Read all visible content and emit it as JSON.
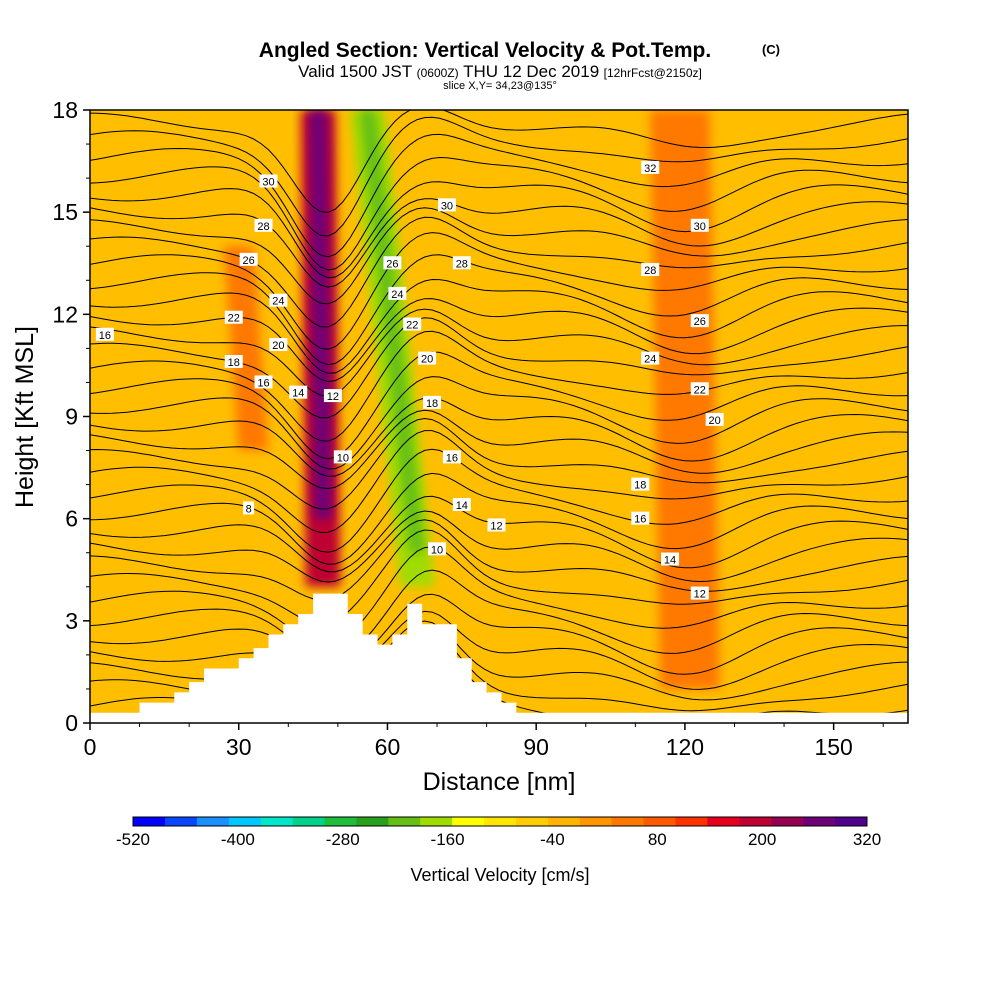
{
  "chart_data": {
    "type": "heatmap",
    "title": "Angled Section: Vertical Velocity & Pot.Temp.",
    "title_mark": "(C)",
    "subtitle_parts": [
      "Valid 1500 JST",
      "(0600Z)",
      "THU 12 Dec 2019",
      "[12hrFcst@2150z]"
    ],
    "slice_label": "slice X,Y= 34,23@135°",
    "xlabel": "Distance [nm]",
    "ylabel": "Height [Kft MSL]",
    "xlim": [
      0,
      165
    ],
    "ylim": [
      0,
      18
    ],
    "xticks": [
      0,
      30,
      60,
      90,
      120,
      150
    ],
    "yticks": [
      0,
      3,
      6,
      9,
      12,
      15,
      18
    ],
    "colorbar": {
      "label": "Vertical Velocity [cm/s]",
      "tick_labels": [
        "-520",
        "-400",
        "-280",
        "-160",
        "-40",
        "80",
        "200",
        "320"
      ],
      "min": -520,
      "max": 320,
      "colors": [
        "#0000ff",
        "#0a45ff",
        "#1890ff",
        "#00c8ff",
        "#00e6c8",
        "#00d28c",
        "#1ebe3c",
        "#28a01e",
        "#64be14",
        "#a0dc00",
        "#ffff00",
        "#ffe600",
        "#ffcd00",
        "#ffb400",
        "#ff9600",
        "#ff7800",
        "#ff5a00",
        "#ff3200",
        "#e6001e",
        "#be0032",
        "#960050",
        "#6e0078",
        "#50008c"
      ]
    },
    "terrain_profile": {
      "x": [
        0,
        10,
        10,
        17,
        17,
        20,
        20,
        23,
        23,
        30,
        30,
        33,
        33,
        36,
        36,
        39,
        39,
        42,
        42,
        45,
        45,
        52,
        52,
        55,
        55,
        58,
        58,
        61,
        61,
        64,
        64,
        67,
        67,
        74,
        74,
        77,
        77,
        80,
        80,
        83,
        83,
        86,
        86,
        89,
        89,
        165
      ],
      "y": [
        0.3,
        0.3,
        0.6,
        0.6,
        0.9,
        0.9,
        1.2,
        1.2,
        1.6,
        1.6,
        1.9,
        1.9,
        2.2,
        2.2,
        2.6,
        2.6,
        2.9,
        2.9,
        3.2,
        3.2,
        3.8,
        3.8,
        3.2,
        3.2,
        2.6,
        2.6,
        2.3,
        2.3,
        2.6,
        2.6,
        3.5,
        3.5,
        2.9,
        2.9,
        1.9,
        1.9,
        1.2,
        1.2,
        0.9,
        0.9,
        0.6,
        0.6,
        0.3,
        0.3,
        0.3,
        0.3
      ]
    },
    "velocity_bands": [
      {
        "x_bottom": 47,
        "x_top": 46,
        "width": 7,
        "y0": 4,
        "y1": 18,
        "value": 200
      },
      {
        "x_bottom": 47,
        "x_top": 46,
        "width": 3.5,
        "y0": 6,
        "y1": 18,
        "value": 280
      },
      {
        "x_bottom": 66,
        "x_top": 56,
        "width": 7,
        "y0": 4,
        "y1": 18,
        "value": -160
      },
      {
        "x_bottom": 66,
        "x_top": 56,
        "width": 3,
        "y0": 5,
        "y1": 18,
        "value": -220
      },
      {
        "x_bottom": 121,
        "x_top": 119,
        "width": 12,
        "y0": 1,
        "y1": 18,
        "value": 60
      },
      {
        "x_bottom": 33,
        "x_top": 30,
        "width": 6,
        "y0": 8,
        "y1": 14,
        "value": 40
      }
    ],
    "contour_labels": [
      {
        "value": "30",
        "x": 36,
        "y": 15.9
      },
      {
        "value": "28",
        "x": 35,
        "y": 14.6
      },
      {
        "value": "26",
        "x": 32,
        "y": 13.6
      },
      {
        "value": "24",
        "x": 38,
        "y": 12.4
      },
      {
        "value": "22",
        "x": 29,
        "y": 11.9
      },
      {
        "value": "20",
        "x": 38,
        "y": 11.1
      },
      {
        "value": "18",
        "x": 29,
        "y": 10.6
      },
      {
        "value": "16",
        "x": 35,
        "y": 10.0
      },
      {
        "value": "14",
        "x": 42,
        "y": 9.7
      },
      {
        "value": "12",
        "x": 49,
        "y": 9.6
      },
      {
        "value": "10",
        "x": 51,
        "y": 7.8
      },
      {
        "value": "8",
        "x": 32,
        "y": 6.3
      },
      {
        "value": "16",
        "x": 3,
        "y": 11.4
      },
      {
        "value": "30",
        "x": 72,
        "y": 15.2
      },
      {
        "value": "28",
        "x": 75,
        "y": 13.5
      },
      {
        "value": "26",
        "x": 61,
        "y": 13.5
      },
      {
        "value": "24",
        "x": 62,
        "y": 12.6
      },
      {
        "value": "22",
        "x": 65,
        "y": 11.7
      },
      {
        "value": "20",
        "x": 68,
        "y": 10.7
      },
      {
        "value": "18",
        "x": 69,
        "y": 9.4
      },
      {
        "value": "16",
        "x": 73,
        "y": 7.8
      },
      {
        "value": "14",
        "x": 75,
        "y": 6.4
      },
      {
        "value": "12",
        "x": 82,
        "y": 5.8
      },
      {
        "value": "10",
        "x": 70,
        "y": 5.1
      },
      {
        "value": "32",
        "x": 113,
        "y": 16.3
      },
      {
        "value": "30",
        "x": 123,
        "y": 14.6
      },
      {
        "value": "28",
        "x": 113,
        "y": 13.3
      },
      {
        "value": "26",
        "x": 123,
        "y": 11.8
      },
      {
        "value": "24",
        "x": 113,
        "y": 10.7
      },
      {
        "value": "22",
        "x": 123,
        "y": 9.8
      },
      {
        "value": "20",
        "x": 126,
        "y": 8.9
      },
      {
        "value": "18",
        "x": 111,
        "y": 7.0
      },
      {
        "value": "16",
        "x": 111,
        "y": 6.0
      },
      {
        "value": "14",
        "x": 117,
        "y": 4.8
      },
      {
        "value": "12",
        "x": 123,
        "y": 3.8
      }
    ]
  }
}
